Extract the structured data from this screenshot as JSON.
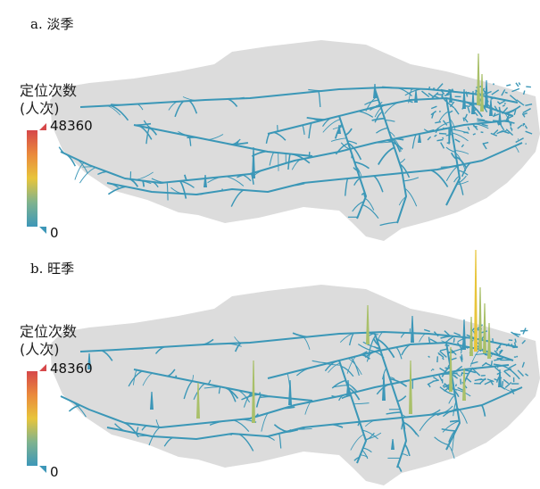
{
  "panels": [
    {
      "label": "a. 淡季"
    },
    {
      "label": "b. 旺季"
    }
  ],
  "legend": {
    "title_line1": "定位次数",
    "title_line2": "(人次)",
    "max_label": "48360",
    "min_label": "0"
  },
  "colors": {
    "land": "#dcdcdc",
    "roads": "#3b97b7",
    "low": "#3d97b8",
    "mid": "#e8c53b",
    "high": "#d6484a"
  }
}
